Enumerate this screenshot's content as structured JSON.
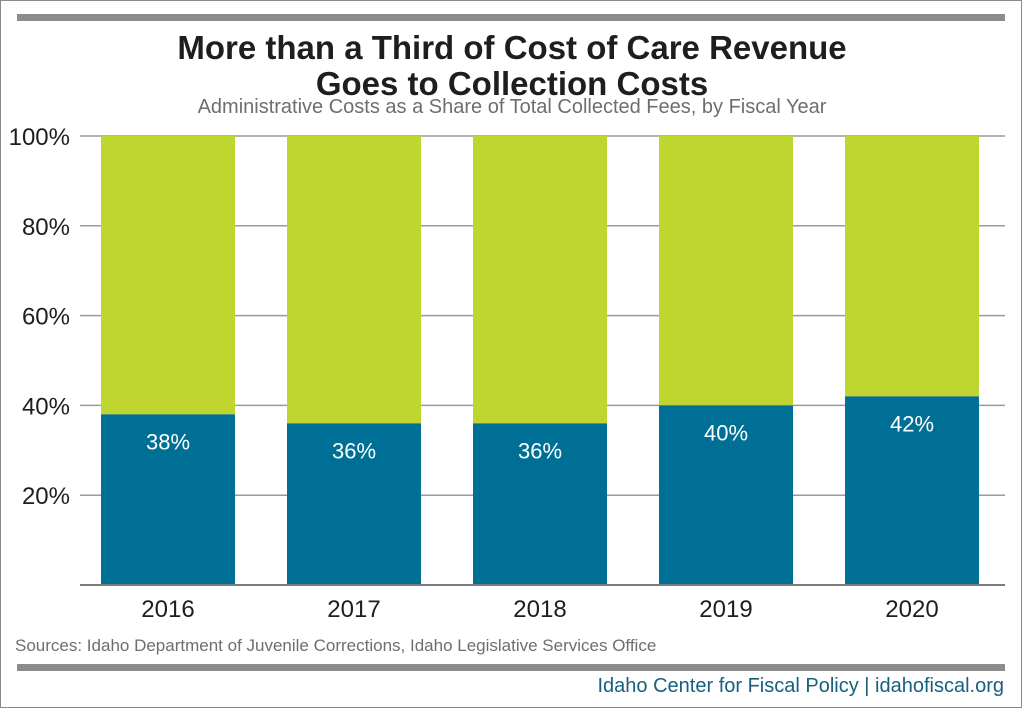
{
  "title_line1": "More than a Third of Cost of Care Revenue",
  "title_line2": "Goes to Collection Costs",
  "subtitle": "Administrative Costs as a Share of Total Collected Fees, by Fiscal Year",
  "source": "Sources: Idaho Department of Juvenile Corrections, Idaho Legislative Services Office",
  "footer": "Idaho Center for Fiscal Policy | idahofiscal.org",
  "colors": {
    "administrative": "#006f96",
    "remainder": "#bfd630",
    "gridline": "#9a9a9a",
    "rule": "#8c8c8c"
  },
  "chart_data": {
    "type": "bar",
    "stacked": true,
    "categories": [
      "2016",
      "2017",
      "2018",
      "2019",
      "2020"
    ],
    "series": [
      {
        "values": [
          38,
          36,
          36,
          40,
          42
        ],
        "color": "#006f96",
        "labels": [
          "38%",
          "36%",
          "36%",
          "40%",
          "42%"
        ]
      },
      {
        "values": [
          62,
          64,
          64,
          60,
          58
        ],
        "color": "#bfd630"
      }
    ],
    "ylim": [
      0,
      100
    ],
    "yticks": [
      20,
      40,
      60,
      80,
      100
    ],
    "ytick_labels": [
      "20%",
      "40%",
      "60%",
      "80%",
      "100%"
    ],
    "grid": true,
    "legend": "none"
  }
}
